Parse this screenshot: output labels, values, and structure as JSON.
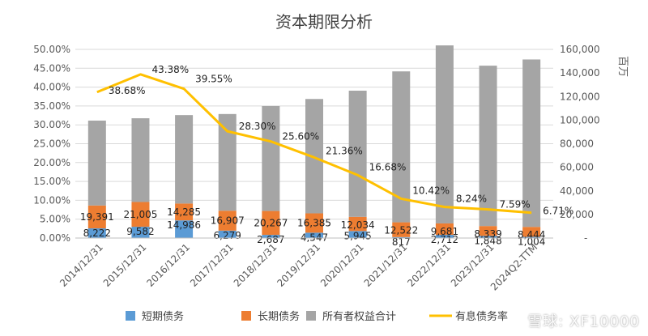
{
  "watermark": "雪球: XF10000",
  "chart_data": {
    "type": "bar",
    "title": "资本期限分析",
    "categories": [
      "2014/12/31",
      "2015/12/31",
      "2016/12/31",
      "2017/12/31",
      "2018/12/31",
      "2019/12/31",
      "2020/12/31",
      "2021/12/31",
      "2022/12/31",
      "2023/12/31",
      "2024Q2-TTM"
    ],
    "y_right_unit": "百万",
    "y_right_ticks": [
      "-",
      "20,000",
      "40,000",
      "60,000",
      "80,000",
      "100,000",
      "120,000",
      "140,000",
      "160,000"
    ],
    "y_right_lim": [
      0,
      160000
    ],
    "y_left_ticks": [
      "0.00%",
      "5.00%",
      "10.00%",
      "15.00%",
      "20.00%",
      "25.00%",
      "30.00%",
      "35.00%",
      "40.00%",
      "45.00%",
      "50.00%"
    ],
    "y_left_lim": [
      0,
      50
    ],
    "grid": true,
    "legend_position": "bottom",
    "series": [
      {
        "name": "短期债务",
        "type": "bar",
        "axis": "right",
        "color": "#5b9bd5",
        "values": [
          8222,
          9582,
          14986,
          6279,
          2687,
          4547,
          5945,
          817,
          2712,
          1848,
          1004
        ],
        "labels": [
          "8,222",
          "9,582",
          "14,986",
          "6,279",
          "2,687",
          "4,547",
          "5,945",
          "817",
          "2,712",
          "1,848",
          "1,004"
        ]
      },
      {
        "name": "长期债务",
        "type": "bar",
        "axis": "right",
        "color": "#ed7d31",
        "values": [
          19391,
          21005,
          14285,
          16907,
          20267,
          16385,
          12034,
          12522,
          9681,
          8339,
          8444
        ],
        "labels": [
          "19,391",
          "21,005",
          "14,285",
          "16,907",
          "20,267",
          "16,385",
          "12,034",
          "12,522",
          "9,681",
          "8,339",
          "8,444"
        ]
      },
      {
        "name": "所有者权益合计",
        "type": "bar",
        "axis": "right",
        "color": "#a5a5a5",
        "values": [
          72000,
          71000,
          75000,
          82000,
          89000,
          97000,
          107000,
          128000,
          151000,
          136000,
          142000
        ]
      },
      {
        "name": "有息债务率",
        "type": "line",
        "axis": "left",
        "color": "#ffc000",
        "values": [
          38.68,
          43.38,
          39.55,
          28.3,
          25.6,
          21.36,
          16.68,
          10.42,
          8.24,
          7.59,
          6.71
        ],
        "labels": [
          "38.68%",
          "43.38%",
          "39.55%",
          "28.30%",
          "25.60%",
          "21.36%",
          "16.68%",
          "10.42%",
          "8.24%",
          "7.59%",
          "6.71%"
        ]
      }
    ]
  }
}
